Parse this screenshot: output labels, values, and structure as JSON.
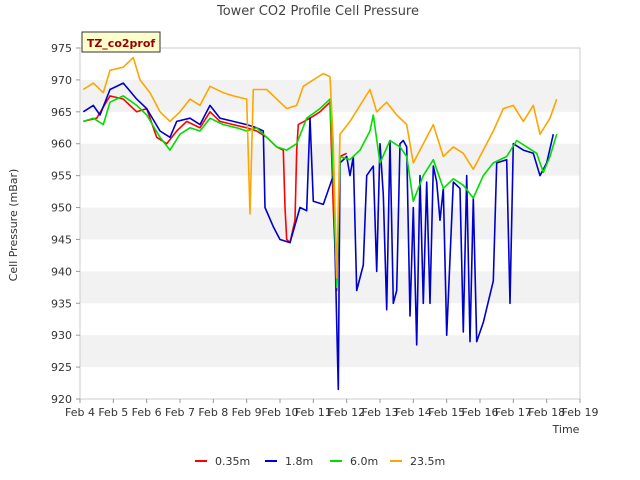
{
  "chart_data": {
    "type": "line",
    "title": "Tower CO2 Profile Cell Pressure",
    "badge": "TZ_co2prof",
    "xlabel": "Time",
    "ylabel": "Cell Pressure (mBar)",
    "xlim": [
      4,
      19
    ],
    "ylim": [
      920,
      975
    ],
    "grid": "horizontal alternating bands",
    "legend_position": "bottom",
    "x_ticks": [
      {
        "v": 4,
        "label": "Feb 4"
      },
      {
        "v": 5,
        "label": "Feb 5"
      },
      {
        "v": 6,
        "label": "Feb 6"
      },
      {
        "v": 7,
        "label": "Feb 7"
      },
      {
        "v": 8,
        "label": "Feb 8"
      },
      {
        "v": 9,
        "label": "Feb 9"
      },
      {
        "v": 10,
        "label": "Feb 10"
      },
      {
        "v": 11,
        "label": "Feb 11"
      },
      {
        "v": 12,
        "label": "Feb 12"
      },
      {
        "v": 13,
        "label": "Feb 13"
      },
      {
        "v": 14,
        "label": "Feb 14"
      },
      {
        "v": 15,
        "label": "Feb 15"
      },
      {
        "v": 16,
        "label": "Feb 16"
      },
      {
        "v": 17,
        "label": "Feb 17"
      },
      {
        "v": 18,
        "label": "Feb 18"
      },
      {
        "v": 19,
        "label": "Feb 19"
      }
    ],
    "y_ticks": [
      920,
      925,
      930,
      935,
      940,
      945,
      950,
      955,
      960,
      965,
      970,
      975
    ],
    "series": [
      {
        "name": "0.35m",
        "color": "#ff0000",
        "points": [
          [
            4.1,
            963.5
          ],
          [
            4.5,
            964.0
          ],
          [
            4.9,
            967.5
          ],
          [
            5.3,
            967.0
          ],
          [
            5.7,
            965.0
          ],
          [
            6.0,
            965.5
          ],
          [
            6.3,
            961.0
          ],
          [
            6.6,
            960.0
          ],
          [
            6.9,
            962.0
          ],
          [
            7.2,
            963.5
          ],
          [
            7.6,
            962.5
          ],
          [
            7.9,
            965.0
          ],
          [
            8.2,
            963.5
          ],
          [
            8.6,
            963.0
          ],
          [
            9.0,
            962.5
          ],
          [
            9.3,
            962.0
          ],
          [
            9.6,
            961.0
          ],
          [
            9.9,
            959.5
          ],
          [
            10.1,
            959.0
          ],
          [
            10.15,
            950.0
          ],
          [
            10.2,
            945.0
          ],
          [
            10.3,
            944.5
          ],
          [
            10.45,
            948.0
          ],
          [
            10.5,
            959.0
          ],
          [
            10.55,
            963.0
          ],
          [
            10.9,
            964.0
          ],
          [
            11.2,
            965.0
          ],
          [
            11.5,
            966.5
          ],
          [
            11.6,
            950.0
          ],
          [
            11.7,
            937.0
          ],
          [
            11.8,
            958.0
          ],
          [
            12.0,
            958.5
          ]
        ]
      },
      {
        "name": "1.8m",
        "color": "#0000cc",
        "points": [
          [
            4.1,
            965.0
          ],
          [
            4.4,
            966.0
          ],
          [
            4.6,
            964.5
          ],
          [
            4.9,
            968.5
          ],
          [
            5.3,
            969.5
          ],
          [
            5.7,
            967.0
          ],
          [
            6.0,
            965.5
          ],
          [
            6.4,
            962.0
          ],
          [
            6.7,
            961.0
          ],
          [
            6.9,
            963.5
          ],
          [
            7.3,
            964.0
          ],
          [
            7.6,
            963.0
          ],
          [
            7.9,
            966.0
          ],
          [
            8.2,
            964.0
          ],
          [
            8.6,
            963.5
          ],
          [
            9.0,
            963.0
          ],
          [
            9.3,
            962.5
          ],
          [
            9.5,
            962.0
          ],
          [
            9.55,
            950.0
          ],
          [
            9.8,
            947.0
          ],
          [
            10.0,
            945.0
          ],
          [
            10.3,
            944.5
          ],
          [
            10.6,
            950.0
          ],
          [
            10.8,
            949.5
          ],
          [
            10.9,
            964.0
          ],
          [
            11.0,
            951.0
          ],
          [
            11.3,
            950.5
          ],
          [
            11.6,
            955.0
          ],
          [
            11.7,
            932.0
          ],
          [
            11.75,
            921.5
          ],
          [
            11.8,
            957.0
          ],
          [
            12.0,
            958.0
          ],
          [
            12.1,
            955.0
          ],
          [
            12.2,
            958.0
          ],
          [
            12.3,
            937.0
          ],
          [
            12.5,
            941.0
          ],
          [
            12.6,
            955.0
          ],
          [
            12.8,
            956.5
          ],
          [
            12.9,
            940.0
          ],
          [
            13.0,
            960.0
          ],
          [
            13.1,
            952.0
          ],
          [
            13.2,
            934.0
          ],
          [
            13.3,
            960.5
          ],
          [
            13.4,
            935.0
          ],
          [
            13.5,
            937.0
          ],
          [
            13.6,
            960.0
          ],
          [
            13.7,
            960.5
          ],
          [
            13.8,
            959.5
          ],
          [
            13.9,
            933.0
          ],
          [
            14.0,
            950.0
          ],
          [
            14.1,
            928.5
          ],
          [
            14.2,
            955.0
          ],
          [
            14.3,
            935.0
          ],
          [
            14.4,
            954.0
          ],
          [
            14.5,
            935.0
          ],
          [
            14.6,
            956.5
          ],
          [
            14.7,
            954.0
          ],
          [
            14.8,
            948.0
          ],
          [
            14.9,
            953.0
          ],
          [
            15.0,
            930.0
          ],
          [
            15.2,
            954.0
          ],
          [
            15.4,
            953.0
          ],
          [
            15.5,
            930.5
          ],
          [
            15.6,
            955.0
          ],
          [
            15.7,
            929.0
          ],
          [
            15.8,
            951.5
          ],
          [
            15.9,
            929.0
          ],
          [
            16.1,
            932.0
          ],
          [
            16.4,
            938.5
          ],
          [
            16.5,
            957.0
          ],
          [
            16.8,
            957.5
          ],
          [
            16.9,
            935.0
          ],
          [
            17.0,
            960.0
          ],
          [
            17.3,
            959.0
          ],
          [
            17.6,
            958.5
          ],
          [
            17.8,
            955.0
          ],
          [
            18.0,
            957.0
          ],
          [
            18.2,
            961.5
          ]
        ]
      },
      {
        "name": "6.0m",
        "color": "#00dd00",
        "points": [
          [
            4.1,
            963.5
          ],
          [
            4.4,
            964.0
          ],
          [
            4.7,
            963.0
          ],
          [
            4.9,
            966.5
          ],
          [
            5.3,
            967.5
          ],
          [
            5.7,
            966.0
          ],
          [
            6.0,
            964.5
          ],
          [
            6.4,
            961.0
          ],
          [
            6.7,
            959.0
          ],
          [
            7.0,
            961.5
          ],
          [
            7.3,
            962.5
          ],
          [
            7.6,
            962.0
          ],
          [
            7.9,
            964.0
          ],
          [
            8.3,
            963.0
          ],
          [
            8.7,
            962.5
          ],
          [
            9.0,
            962.0
          ],
          [
            9.3,
            962.5
          ],
          [
            9.6,
            961.0
          ],
          [
            9.9,
            959.5
          ],
          [
            10.2,
            959.0
          ],
          [
            10.5,
            960.0
          ],
          [
            10.8,
            964.0
          ],
          [
            11.2,
            965.5
          ],
          [
            11.5,
            967.0
          ],
          [
            11.6,
            955.0
          ],
          [
            11.7,
            937.5
          ],
          [
            11.8,
            958.0
          ],
          [
            12.1,
            957.5
          ],
          [
            12.4,
            959.0
          ],
          [
            12.7,
            962.0
          ],
          [
            12.8,
            964.5
          ],
          [
            13.0,
            957.0
          ],
          [
            13.3,
            960.5
          ],
          [
            13.6,
            959.5
          ],
          [
            13.8,
            958.0
          ],
          [
            14.0,
            951.0
          ],
          [
            14.3,
            955.0
          ],
          [
            14.6,
            957.5
          ],
          [
            14.9,
            953.0
          ],
          [
            15.2,
            954.5
          ],
          [
            15.5,
            953.5
          ],
          [
            15.8,
            951.5
          ],
          [
            16.1,
            955.0
          ],
          [
            16.4,
            957.0
          ],
          [
            16.8,
            958.0
          ],
          [
            17.1,
            960.5
          ],
          [
            17.4,
            959.5
          ],
          [
            17.7,
            958.5
          ],
          [
            17.9,
            955.5
          ],
          [
            18.1,
            958.0
          ],
          [
            18.3,
            961.5
          ]
        ]
      },
      {
        "name": "23.5m",
        "color": "#ffa500",
        "points": [
          [
            4.1,
            968.5
          ],
          [
            4.4,
            969.5
          ],
          [
            4.7,
            968.0
          ],
          [
            4.9,
            971.5
          ],
          [
            5.3,
            972.0
          ],
          [
            5.6,
            973.5
          ],
          [
            5.8,
            970.0
          ],
          [
            6.1,
            968.0
          ],
          [
            6.4,
            965.0
          ],
          [
            6.7,
            963.5
          ],
          [
            7.0,
            965.0
          ],
          [
            7.3,
            967.0
          ],
          [
            7.6,
            966.0
          ],
          [
            7.9,
            969.0
          ],
          [
            8.3,
            968.0
          ],
          [
            8.6,
            967.5
          ],
          [
            9.0,
            967.0
          ],
          [
            9.1,
            949.0
          ],
          [
            9.2,
            968.5
          ],
          [
            9.6,
            968.5
          ],
          [
            9.9,
            967.0
          ],
          [
            10.2,
            965.5
          ],
          [
            10.5,
            966.0
          ],
          [
            10.7,
            969.0
          ],
          [
            11.0,
            970.0
          ],
          [
            11.3,
            971.0
          ],
          [
            11.5,
            970.5
          ],
          [
            11.6,
            960.0
          ],
          [
            11.7,
            939.0
          ],
          [
            11.8,
            961.5
          ],
          [
            12.1,
            963.5
          ],
          [
            12.4,
            966.0
          ],
          [
            12.7,
            968.5
          ],
          [
            12.9,
            965.0
          ],
          [
            13.2,
            966.5
          ],
          [
            13.5,
            964.5
          ],
          [
            13.8,
            963.0
          ],
          [
            14.0,
            957.0
          ],
          [
            14.3,
            960.0
          ],
          [
            14.6,
            963.0
          ],
          [
            14.9,
            958.0
          ],
          [
            15.2,
            959.5
          ],
          [
            15.5,
            958.5
          ],
          [
            15.8,
            956.0
          ],
          [
            16.1,
            959.0
          ],
          [
            16.4,
            962.0
          ],
          [
            16.7,
            965.5
          ],
          [
            17.0,
            966.0
          ],
          [
            17.3,
            963.5
          ],
          [
            17.6,
            966.0
          ],
          [
            17.8,
            961.5
          ],
          [
            18.1,
            964.0
          ],
          [
            18.3,
            967.0
          ]
        ]
      }
    ]
  }
}
